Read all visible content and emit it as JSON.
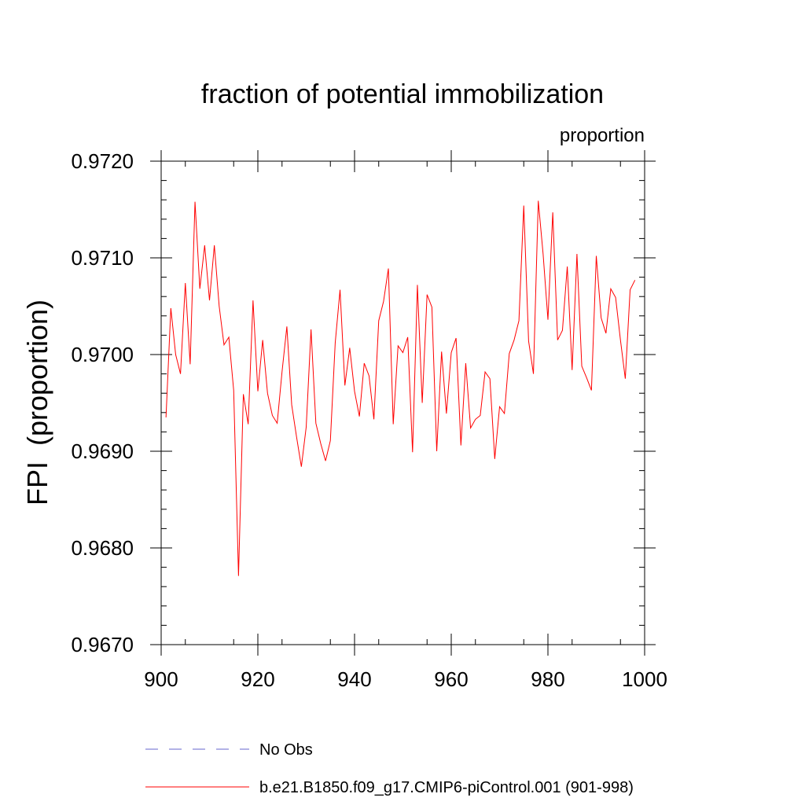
{
  "chart_data": {
    "type": "line",
    "title": "fraction of potential immobilization",
    "units_label": "proportion",
    "ylabel": "FPI  (proportion)",
    "xlabel": "",
    "xlim": [
      900,
      1000
    ],
    "ylim": [
      0.967,
      0.972
    ],
    "xticks": [
      900,
      920,
      940,
      960,
      980,
      1000
    ],
    "xtick_labels": [
      "900",
      "920",
      "940",
      "960",
      "980",
      "1000"
    ],
    "yticks": [
      0.967,
      0.968,
      0.969,
      0.97,
      0.971,
      0.972
    ],
    "ytick_labels": [
      "0.9670",
      "0.9680",
      "0.9690",
      "0.9700",
      "0.9710",
      "0.9720"
    ],
    "grid": false,
    "legend_position": "bottom",
    "series": [
      {
        "name": "b.e21.B1850.f09_g17.CMIP6-piControl.001 (901-998)",
        "color": "#ff0000",
        "style": "solid",
        "x": [
          901,
          902,
          903,
          904,
          905,
          906,
          907,
          908,
          909,
          910,
          911,
          912,
          913,
          914,
          915,
          916,
          917,
          918,
          919,
          920,
          921,
          922,
          923,
          924,
          925,
          926,
          927,
          928,
          929,
          930,
          931,
          932,
          933,
          934,
          935,
          936,
          937,
          938,
          939,
          940,
          941,
          942,
          943,
          944,
          945,
          946,
          947,
          948,
          949,
          950,
          951,
          952,
          953,
          954,
          955,
          956,
          957,
          958,
          959,
          960,
          961,
          962,
          963,
          964,
          965,
          966,
          967,
          968,
          969,
          970,
          971,
          972,
          973,
          974,
          975,
          976,
          977,
          978,
          979,
          980,
          981,
          982,
          983,
          984,
          985,
          986,
          987,
          988,
          989,
          990,
          991,
          992,
          993,
          994,
          995,
          996,
          997,
          998
        ],
        "values": [
          0.96935,
          0.97048,
          0.97,
          0.9698,
          0.97074,
          0.9699,
          0.97158,
          0.97068,
          0.97113,
          0.97056,
          0.97113,
          0.9705,
          0.9701,
          0.97018,
          0.96963,
          0.96771,
          0.96959,
          0.96928,
          0.97056,
          0.96962,
          0.97015,
          0.9696,
          0.96937,
          0.96929,
          0.96982,
          0.97029,
          0.96948,
          0.96915,
          0.96884,
          0.96925,
          0.97026,
          0.96929,
          0.96908,
          0.9689,
          0.96911,
          0.97012,
          0.97067,
          0.96968,
          0.97007,
          0.96962,
          0.96936,
          0.96991,
          0.96978,
          0.96933,
          0.97035,
          0.97055,
          0.97089,
          0.96928,
          0.97009,
          0.97002,
          0.97018,
          0.96899,
          0.97072,
          0.9695,
          0.97062,
          0.97049,
          0.969,
          0.97003,
          0.96939,
          0.97002,
          0.97017,
          0.96906,
          0.96991,
          0.96924,
          0.96933,
          0.96937,
          0.96982,
          0.96975,
          0.96892,
          0.96946,
          0.96939,
          0.97001,
          0.97015,
          0.97035,
          0.97154,
          0.97014,
          0.9698,
          0.97159,
          0.97104,
          0.97036,
          0.97147,
          0.97015,
          0.97025,
          0.97091,
          0.96984,
          0.97104,
          0.96988,
          0.96976,
          0.96963,
          0.97102,
          0.97038,
          0.97022,
          0.97068,
          0.97059,
          0.97015,
          0.96975,
          0.97067,
          0.97077
        ]
      },
      {
        "name": "No Obs",
        "color": "#6666cc",
        "style": "dashed",
        "x": [],
        "values": []
      }
    ]
  }
}
